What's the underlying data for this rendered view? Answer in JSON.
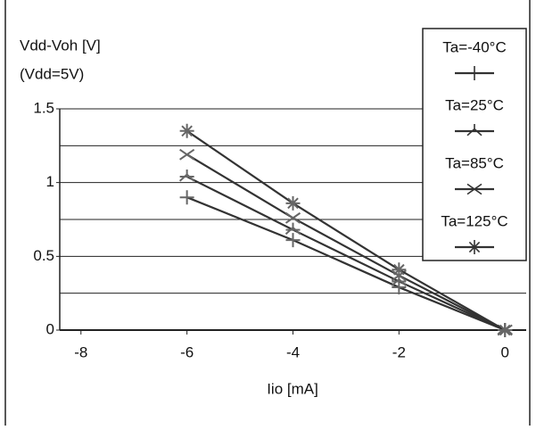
{
  "chart_data": {
    "type": "line",
    "y_label_lines": [
      "Vdd-Voh [V]",
      "(Vdd=5V)"
    ],
    "x_label": "Iio [mA]",
    "x": [
      -6,
      -4,
      -2,
      0
    ],
    "series": [
      {
        "name": "Ta=-40°C",
        "color": "#333333",
        "marker": "vbar",
        "values": [
          0.9,
          0.61,
          0.29,
          0
        ]
      },
      {
        "name": "Ta=25°C",
        "color": "#333333",
        "marker": "tri",
        "values": [
          1.04,
          0.68,
          0.33,
          0
        ]
      },
      {
        "name": "Ta=85°C",
        "color": "#333333",
        "marker": "x",
        "values": [
          1.19,
          0.76,
          0.37,
          0
        ]
      },
      {
        "name": "Ta=125°C",
        "color": "#333333",
        "marker": "star",
        "values": [
          1.35,
          0.86,
          0.41,
          0
        ]
      }
    ],
    "xlim": [
      -8.4,
      0.4
    ],
    "xticks": [
      -8,
      -6,
      -4,
      -2,
      0
    ],
    "ylim": [
      0,
      1.5
    ],
    "yticks": [
      0,
      0.5,
      1,
      1.5
    ],
    "minor_yticks": [
      0.25,
      0.75,
      1.25
    ],
    "grid": true,
    "legend": "top-right"
  }
}
